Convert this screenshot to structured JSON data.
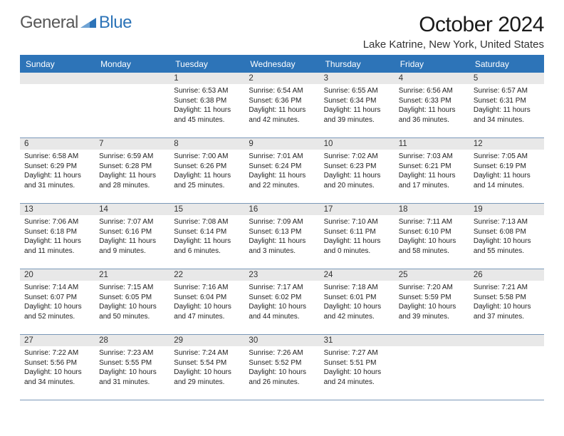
{
  "logo": {
    "text_gray": "General",
    "text_blue": "Blue"
  },
  "title": "October 2024",
  "location": "Lake Katrine, New York, United States",
  "colors": {
    "header_bg": "#2d74b8",
    "header_text": "#ffffff",
    "daynum_bg": "#e8e8e8",
    "cell_border": "#7a98b8",
    "logo_gray": "#575757",
    "logo_blue": "#2d74b8",
    "body_text": "#222222",
    "page_bg": "#ffffff"
  },
  "day_headers": [
    "Sunday",
    "Monday",
    "Tuesday",
    "Wednesday",
    "Thursday",
    "Friday",
    "Saturday"
  ],
  "leading_blanks": 2,
  "days": [
    {
      "n": "1",
      "sunrise": "6:53 AM",
      "sunset": "6:38 PM",
      "daylight": "11 hours and 45 minutes."
    },
    {
      "n": "2",
      "sunrise": "6:54 AM",
      "sunset": "6:36 PM",
      "daylight": "11 hours and 42 minutes."
    },
    {
      "n": "3",
      "sunrise": "6:55 AM",
      "sunset": "6:34 PM",
      "daylight": "11 hours and 39 minutes."
    },
    {
      "n": "4",
      "sunrise": "6:56 AM",
      "sunset": "6:33 PM",
      "daylight": "11 hours and 36 minutes."
    },
    {
      "n": "5",
      "sunrise": "6:57 AM",
      "sunset": "6:31 PM",
      "daylight": "11 hours and 34 minutes."
    },
    {
      "n": "6",
      "sunrise": "6:58 AM",
      "sunset": "6:29 PM",
      "daylight": "11 hours and 31 minutes."
    },
    {
      "n": "7",
      "sunrise": "6:59 AM",
      "sunset": "6:28 PM",
      "daylight": "11 hours and 28 minutes."
    },
    {
      "n": "8",
      "sunrise": "7:00 AM",
      "sunset": "6:26 PM",
      "daylight": "11 hours and 25 minutes."
    },
    {
      "n": "9",
      "sunrise": "7:01 AM",
      "sunset": "6:24 PM",
      "daylight": "11 hours and 22 minutes."
    },
    {
      "n": "10",
      "sunrise": "7:02 AM",
      "sunset": "6:23 PM",
      "daylight": "11 hours and 20 minutes."
    },
    {
      "n": "11",
      "sunrise": "7:03 AM",
      "sunset": "6:21 PM",
      "daylight": "11 hours and 17 minutes."
    },
    {
      "n": "12",
      "sunrise": "7:05 AM",
      "sunset": "6:19 PM",
      "daylight": "11 hours and 14 minutes."
    },
    {
      "n": "13",
      "sunrise": "7:06 AM",
      "sunset": "6:18 PM",
      "daylight": "11 hours and 11 minutes."
    },
    {
      "n": "14",
      "sunrise": "7:07 AM",
      "sunset": "6:16 PM",
      "daylight": "11 hours and 9 minutes."
    },
    {
      "n": "15",
      "sunrise": "7:08 AM",
      "sunset": "6:14 PM",
      "daylight": "11 hours and 6 minutes."
    },
    {
      "n": "16",
      "sunrise": "7:09 AM",
      "sunset": "6:13 PM",
      "daylight": "11 hours and 3 minutes."
    },
    {
      "n": "17",
      "sunrise": "7:10 AM",
      "sunset": "6:11 PM",
      "daylight": "11 hours and 0 minutes."
    },
    {
      "n": "18",
      "sunrise": "7:11 AM",
      "sunset": "6:10 PM",
      "daylight": "10 hours and 58 minutes."
    },
    {
      "n": "19",
      "sunrise": "7:13 AM",
      "sunset": "6:08 PM",
      "daylight": "10 hours and 55 minutes."
    },
    {
      "n": "20",
      "sunrise": "7:14 AM",
      "sunset": "6:07 PM",
      "daylight": "10 hours and 52 minutes."
    },
    {
      "n": "21",
      "sunrise": "7:15 AM",
      "sunset": "6:05 PM",
      "daylight": "10 hours and 50 minutes."
    },
    {
      "n": "22",
      "sunrise": "7:16 AM",
      "sunset": "6:04 PM",
      "daylight": "10 hours and 47 minutes."
    },
    {
      "n": "23",
      "sunrise": "7:17 AM",
      "sunset": "6:02 PM",
      "daylight": "10 hours and 44 minutes."
    },
    {
      "n": "24",
      "sunrise": "7:18 AM",
      "sunset": "6:01 PM",
      "daylight": "10 hours and 42 minutes."
    },
    {
      "n": "25",
      "sunrise": "7:20 AM",
      "sunset": "5:59 PM",
      "daylight": "10 hours and 39 minutes."
    },
    {
      "n": "26",
      "sunrise": "7:21 AM",
      "sunset": "5:58 PM",
      "daylight": "10 hours and 37 minutes."
    },
    {
      "n": "27",
      "sunrise": "7:22 AM",
      "sunset": "5:56 PM",
      "daylight": "10 hours and 34 minutes."
    },
    {
      "n": "28",
      "sunrise": "7:23 AM",
      "sunset": "5:55 PM",
      "daylight": "10 hours and 31 minutes."
    },
    {
      "n": "29",
      "sunrise": "7:24 AM",
      "sunset": "5:54 PM",
      "daylight": "10 hours and 29 minutes."
    },
    {
      "n": "30",
      "sunrise": "7:26 AM",
      "sunset": "5:52 PM",
      "daylight": "10 hours and 26 minutes."
    },
    {
      "n": "31",
      "sunrise": "7:27 AM",
      "sunset": "5:51 PM",
      "daylight": "10 hours and 24 minutes."
    }
  ],
  "labels": {
    "sunrise_prefix": "Sunrise: ",
    "sunset_prefix": "Sunset: ",
    "daylight_prefix": "Daylight: "
  }
}
